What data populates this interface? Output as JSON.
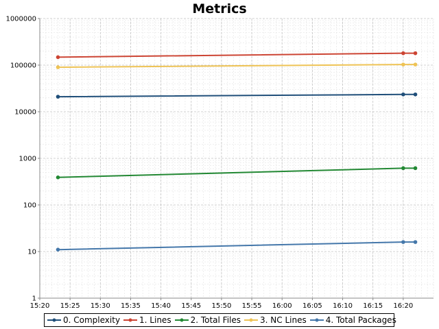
{
  "chart_data": {
    "type": "line",
    "title": "Metrics",
    "xlabel": "",
    "ylabel": "",
    "y_scale": "log",
    "ylim": [
      1,
      1000000
    ],
    "y_ticks": [
      "1",
      "10",
      "100",
      "1000",
      "10000",
      "100000",
      "1000000"
    ],
    "x_range": [
      "15:20",
      "16:25"
    ],
    "x_ticks": [
      "15:20",
      "15:25",
      "15:30",
      "15:35",
      "15:40",
      "15:45",
      "15:50",
      "15:55",
      "16:00",
      "16:05",
      "16:10",
      "16:15",
      "16:20"
    ],
    "grid": true,
    "legend_position": "bottom",
    "x": [
      "15:23",
      "16:20",
      "16:22"
    ],
    "series": [
      {
        "name": "0. Complexity",
        "color": "#1f4e79",
        "values": [
          21000,
          23500,
          23500
        ]
      },
      {
        "name": "1. Lines",
        "color": "#cc4433",
        "values": [
          148000,
          180000,
          180000
        ]
      },
      {
        "name": "2. Total Files",
        "color": "#228833",
        "values": [
          390,
          615,
          615
        ]
      },
      {
        "name": "3. NC Lines",
        "color": "#eec355",
        "values": [
          90000,
          103000,
          103000
        ]
      },
      {
        "name": "4. Total Packages",
        "color": "#4477aa",
        "values": [
          11,
          16,
          16
        ]
      }
    ]
  }
}
